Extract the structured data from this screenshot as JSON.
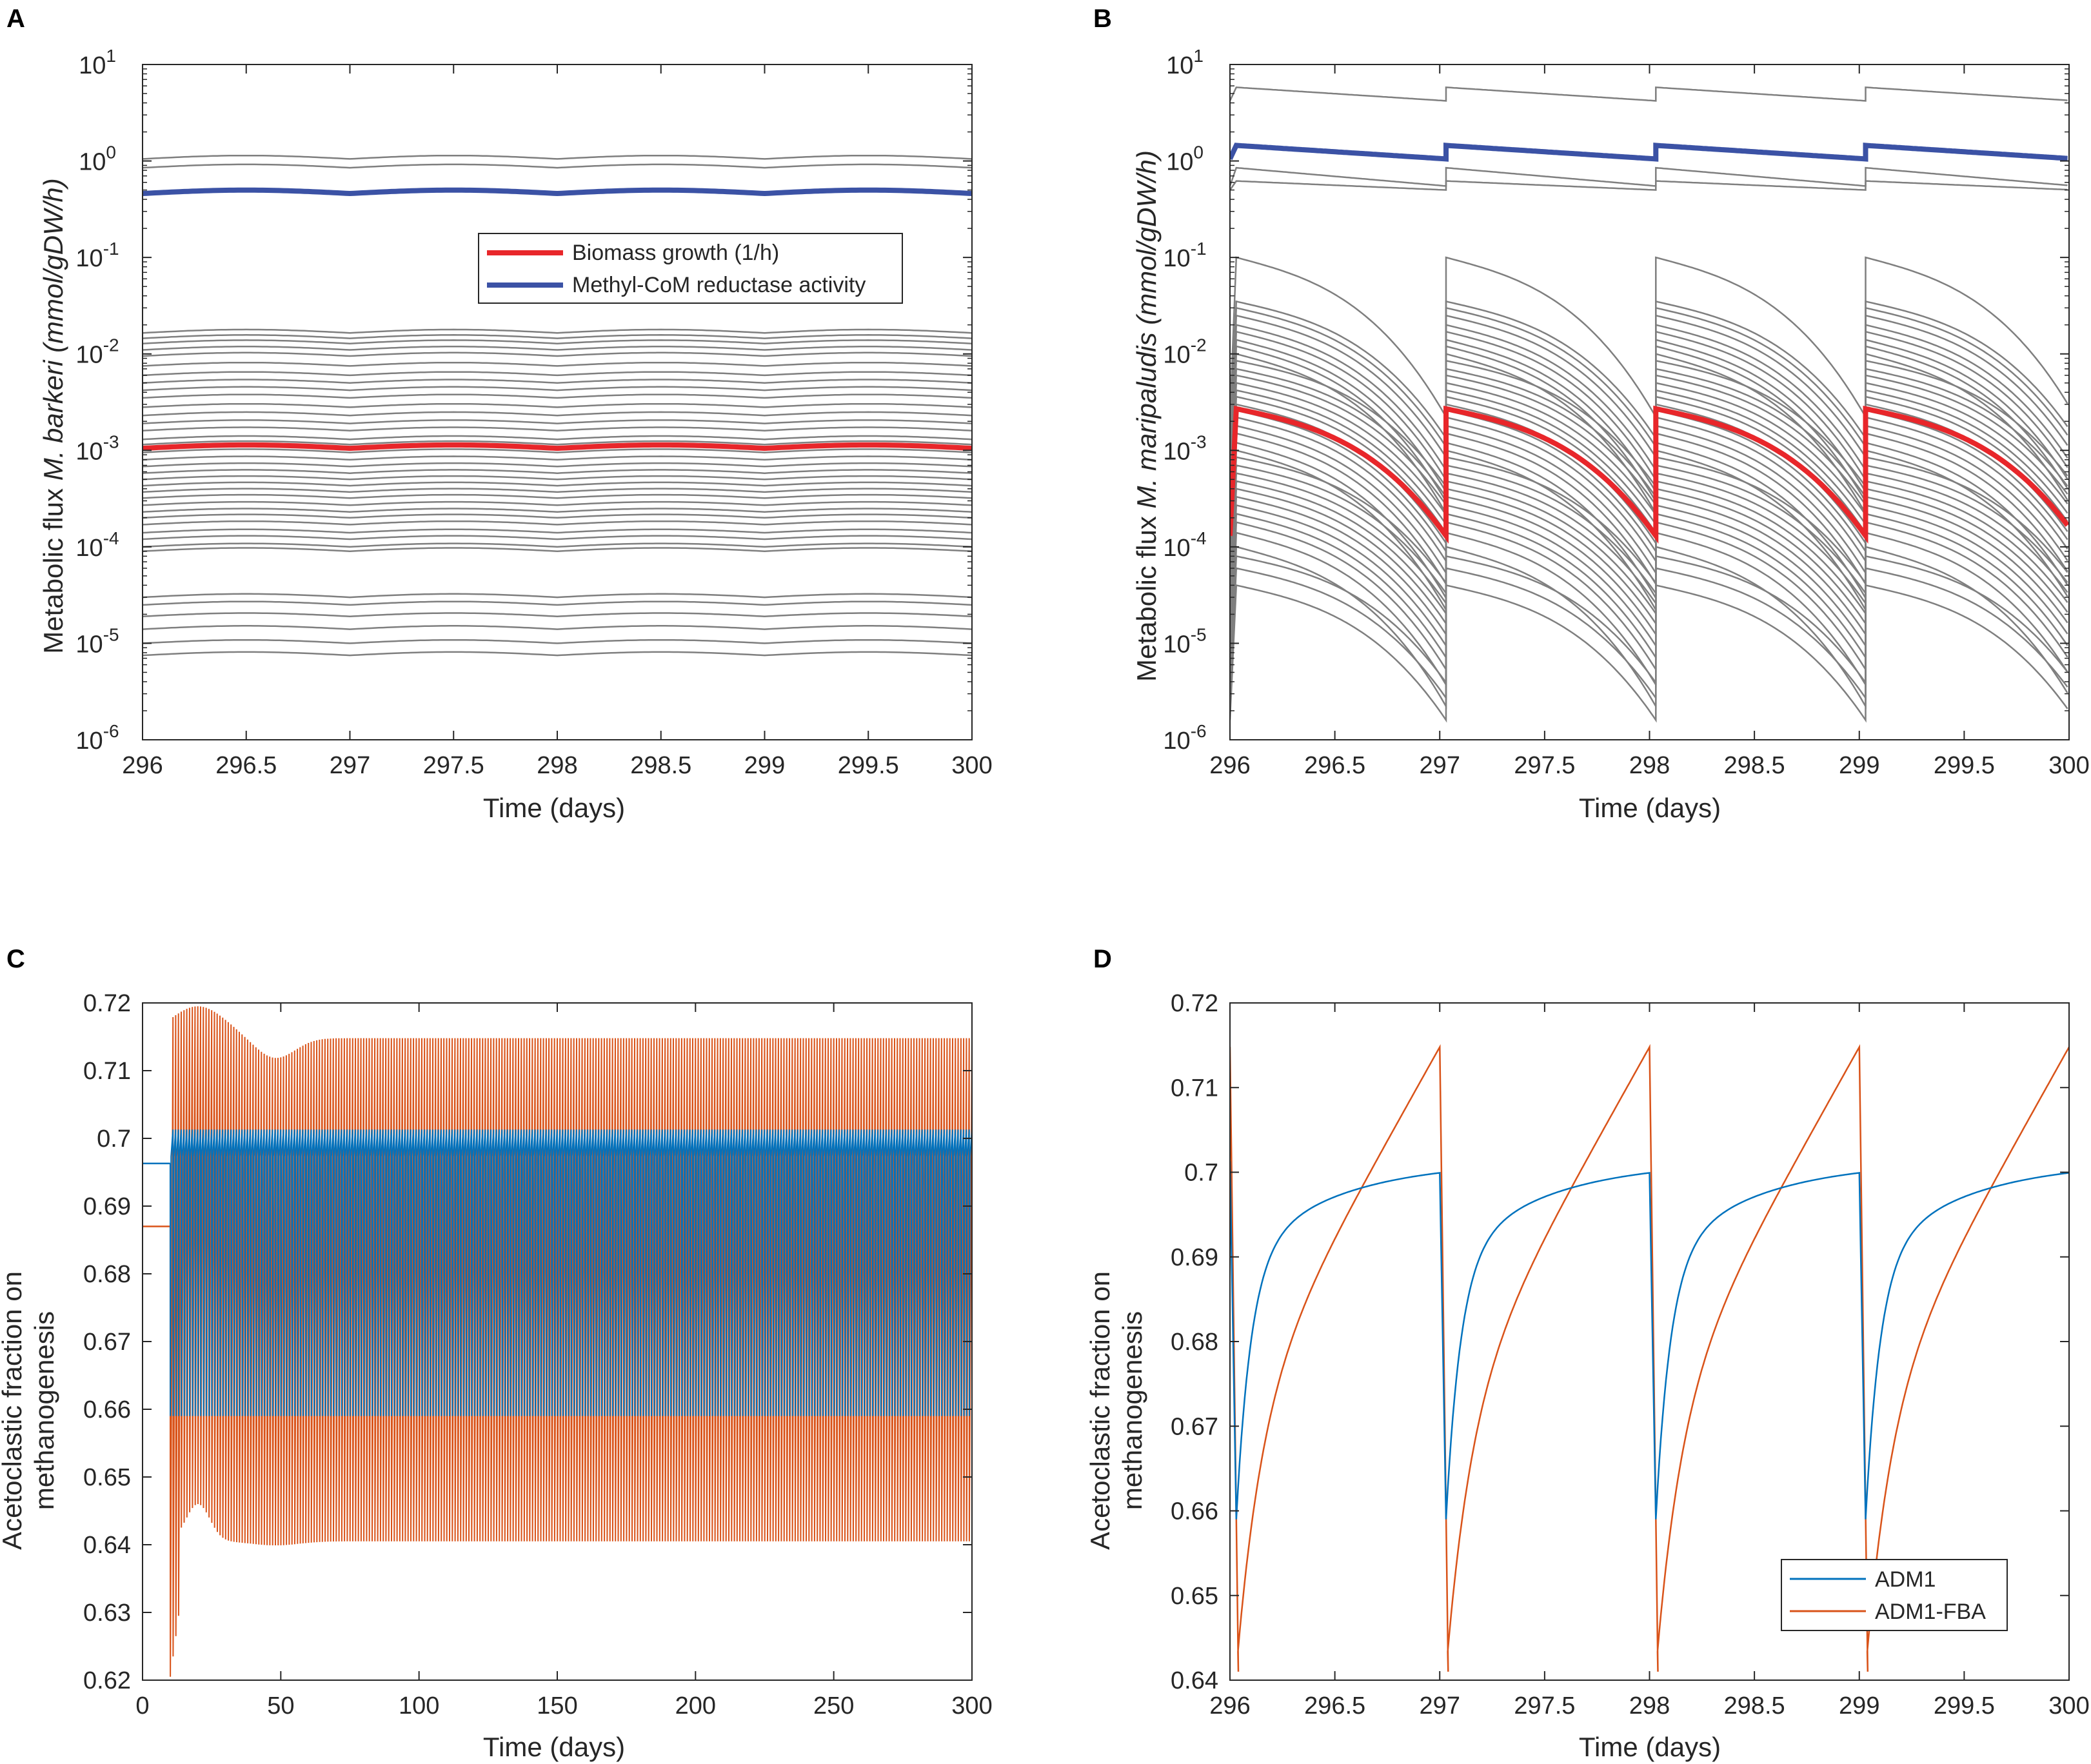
{
  "figure": {
    "panels": [
      "A",
      "B",
      "C",
      "D"
    ]
  },
  "chart_data": [
    {
      "panel": "A",
      "type": "line",
      "yscale": "log",
      "xlabel": "Time (days)",
      "ylabel_prefix": "Metabolic flux ",
      "ylabel_italic": "M. barkeri",
      "ylabel_suffix": " (mmol/gDW/h)",
      "xlim": [
        296,
        300
      ],
      "ylim": [
        1e-06,
        10
      ],
      "xticks": [
        "296",
        "296.5",
        "297",
        "297.5",
        "298",
        "298.5",
        "299",
        "299.5",
        "300"
      ],
      "ytick_exponents": [
        "-6",
        "-5",
        "-4",
        "-3",
        "-2",
        "-1",
        "0",
        "1"
      ],
      "ytick_base": "10",
      "gray_flux_levels": [
        1.05,
        0.85,
        0.0165,
        0.0145,
        0.0128,
        0.011,
        0.0095,
        0.0075,
        0.006,
        0.005,
        0.0042,
        0.0035,
        0.0028,
        0.0023,
        0.0019,
        0.0016,
        0.0013,
        0.00115,
        0.00095,
        0.0008,
        0.00068,
        0.00058,
        0.0005,
        0.00043,
        0.00037,
        0.00032,
        0.00027,
        0.00023,
        0.0002,
        0.00017,
        0.00014,
        0.00012,
        0.0001,
        9e-05,
        3e-05,
        2.5e-05,
        1.9e-05,
        1.4e-05,
        1e-05,
        7.5e-06
      ],
      "series": [
        {
          "name": "Biomass growth (1/h)",
          "color": "#e8262a",
          "level": 0.00105
        },
        {
          "name": "Methyl-CoM reductase activity",
          "color": "#3b52a5",
          "level": 0.46
        }
      ],
      "legend": [
        "Biomass growth (1/h)",
        "Methyl-CoM reductase activity"
      ]
    },
    {
      "panel": "B",
      "type": "line",
      "yscale": "log",
      "xlabel": "Time (days)",
      "ylabel_prefix": "Metabolic flux ",
      "ylabel_italic": "M. maripaludis",
      "ylabel_suffix": " (mmol/gDW/h)",
      "xlim": [
        296,
        300
      ],
      "ylim": [
        1e-06,
        10
      ],
      "xticks": [
        "296",
        "296.5",
        "297",
        "297.5",
        "298",
        "298.5",
        "299",
        "299.5",
        "300"
      ],
      "ytick_exponents": [
        "-6",
        "-5",
        "-4",
        "-3",
        "-2",
        "-1",
        "0",
        "1"
      ],
      "ytick_base": "10",
      "cycle_start_offset_days": 0.03,
      "upper_gray_peaks": [
        5.8,
        0.85,
        0.62
      ],
      "upper_gray_ends": [
        4.2,
        0.55,
        0.5
      ],
      "lower_gray_peaks": [
        0.1,
        0.035,
        0.03,
        0.025,
        0.02,
        0.017,
        0.014,
        0.012,
        0.01,
        0.0085,
        0.007,
        0.006,
        0.005,
        0.0042,
        0.0036,
        0.003,
        0.0026,
        0.0022,
        0.0018,
        0.0015,
        0.0012,
        0.001,
        0.00085,
        0.0007,
        0.00058,
        0.00048,
        0.0004,
        0.00033,
        0.00027,
        0.00022,
        0.00018,
        0.00014,
        0.0001,
        8e-05,
        6e-05,
        4e-05
      ],
      "series": [
        {
          "name": "Biomass growth",
          "color": "#e8262a",
          "peak": 0.0027,
          "end": 0.00013
        },
        {
          "name": "Methyl-CoM reductase activity",
          "color": "#3b52a5",
          "peak": 1.45,
          "end": 1.05
        }
      ]
    },
    {
      "panel": "C",
      "type": "line",
      "xlabel": "Time (days)",
      "ylabel_line1": "Acetoclastic fraction on",
      "ylabel_line2": "methanogenesis",
      "xlim": [
        0,
        300
      ],
      "ylim": [
        0.62,
        0.72
      ],
      "xticks": [
        "0",
        "50",
        "100",
        "150",
        "200",
        "250",
        "300"
      ],
      "yticks": [
        "0.62",
        "0.63",
        "0.64",
        "0.65",
        "0.66",
        "0.67",
        "0.68",
        "0.69",
        "0.7",
        "0.71",
        "0.72"
      ],
      "series": [
        {
          "name": "ADM1",
          "color": "#0072bd",
          "initial": 0.6963,
          "start_day": 10,
          "min": 0.659,
          "max": 0.7013
        },
        {
          "name": "ADM1-FBA",
          "color": "#d95319",
          "initial": 0.687,
          "start_day": 10,
          "min_steady": 0.6405,
          "max_steady": 0.7148,
          "overshoot_max": 0.7195,
          "overshoot_min": 0.6395,
          "first_dip": 0.6205
        }
      ]
    },
    {
      "panel": "D",
      "type": "line",
      "xlabel": "Time (days)",
      "ylabel_line1": "Acetoclastic fraction on",
      "ylabel_line2": "methanogenesis",
      "xlim": [
        296,
        300
      ],
      "ylim": [
        0.64,
        0.72
      ],
      "xticks": [
        "296",
        "296.5",
        "297",
        "297.5",
        "298",
        "298.5",
        "299",
        "299.5",
        "300"
      ],
      "yticks": [
        "0.64",
        "0.65",
        "0.66",
        "0.67",
        "0.68",
        "0.69",
        "0.7",
        "0.71",
        "0.72"
      ],
      "series": [
        {
          "name": "ADM1",
          "color": "#0072bd",
          "min": 0.659,
          "max": 0.7013
        },
        {
          "name": "ADM1-FBA",
          "color": "#d95319",
          "min": 0.641,
          "max": 0.7148
        }
      ],
      "legend": [
        "ADM1",
        "ADM1-FBA"
      ]
    }
  ]
}
